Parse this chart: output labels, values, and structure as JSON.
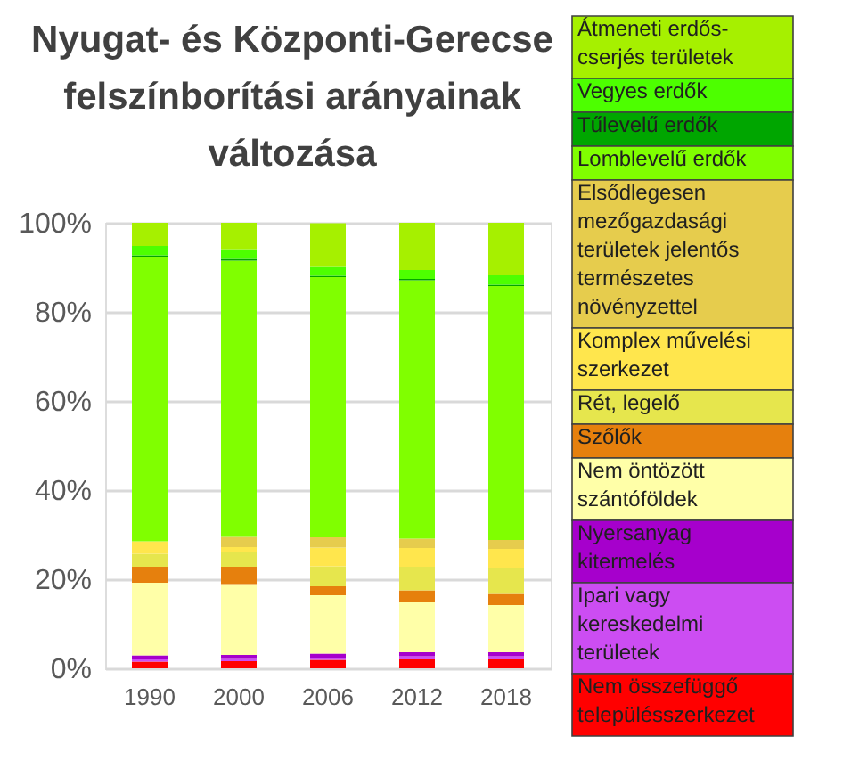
{
  "chart_data": {
    "type": "bar",
    "stacked": true,
    "title": "Nyugat- és Központi-Gerecse felszínborítási arányainak változása",
    "categories": [
      "1990",
      "2000",
      "2006",
      "2012",
      "2018"
    ],
    "ylim": [
      0,
      100
    ],
    "yticks": [
      {
        "value": 0,
        "label": "0%"
      },
      {
        "value": 20,
        "label": "20%"
      },
      {
        "value": 40,
        "label": "40%"
      },
      {
        "value": 60,
        "label": "60%"
      },
      {
        "value": 80,
        "label": "80%"
      },
      {
        "value": 100,
        "label": "100%"
      }
    ],
    "grid": "y",
    "legend": "right",
    "series": [
      {
        "name": "Nem összefüggő településszerkezet",
        "color": "#ff0000",
        "values": [
          1.5,
          1.6,
          1.9,
          2.0,
          2.0
        ]
      },
      {
        "name": "Ipari vagy kereskedelmi területek",
        "color": "#cc4df2",
        "values": [
          0.5,
          0.5,
          0.5,
          0.7,
          0.7
        ]
      },
      {
        "name": "Nyersanyag kitermelés",
        "color": "#a600cc",
        "values": [
          0.9,
          0.9,
          0.9,
          0.9,
          0.9
        ]
      },
      {
        "name": "Nem öntözött szántóföldek",
        "color": "#ffffa8",
        "values": [
          16.3,
          15.9,
          13.1,
          11.2,
          10.6
        ]
      },
      {
        "name": "Szőlők",
        "color": "#e6800d",
        "values": [
          3.6,
          3.9,
          2.0,
          2.7,
          2.5
        ]
      },
      {
        "name": "Rét, legelő",
        "color": "#e6e64d",
        "values": [
          2.9,
          3.2,
          4.5,
          5.3,
          5.7
        ]
      },
      {
        "name": "Komplex művelési szerkezet",
        "color": "#ffe64d",
        "values": [
          2.8,
          1.2,
          4.2,
          4.2,
          4.4
        ]
      },
      {
        "name": "Elsődlegesen mezőgazdasági területek jelentős természetes növényzettel",
        "color": "#e6cc4d",
        "values": [
          0.0,
          2.3,
          2.3,
          2.1,
          2.0
        ]
      },
      {
        "name": "Lomblevelű erdők",
        "color": "#80ff00",
        "values": [
          63.9,
          62.0,
          58.4,
          58.0,
          57.0
        ]
      },
      {
        "name": "Tűlevelű erdők",
        "color": "#00a600",
        "values": [
          0.3,
          0.4,
          0.3,
          0.3,
          0.3
        ]
      },
      {
        "name": "Vegyes erdők",
        "color": "#4dff00",
        "values": [
          2.1,
          2.0,
          2.0,
          2.0,
          2.1
        ]
      },
      {
        "name": "Átmeneti erdős-cserjés területek",
        "color": "#a6f000",
        "values": [
          5.2,
          6.1,
          9.8,
          10.6,
          11.8
        ]
      }
    ]
  }
}
